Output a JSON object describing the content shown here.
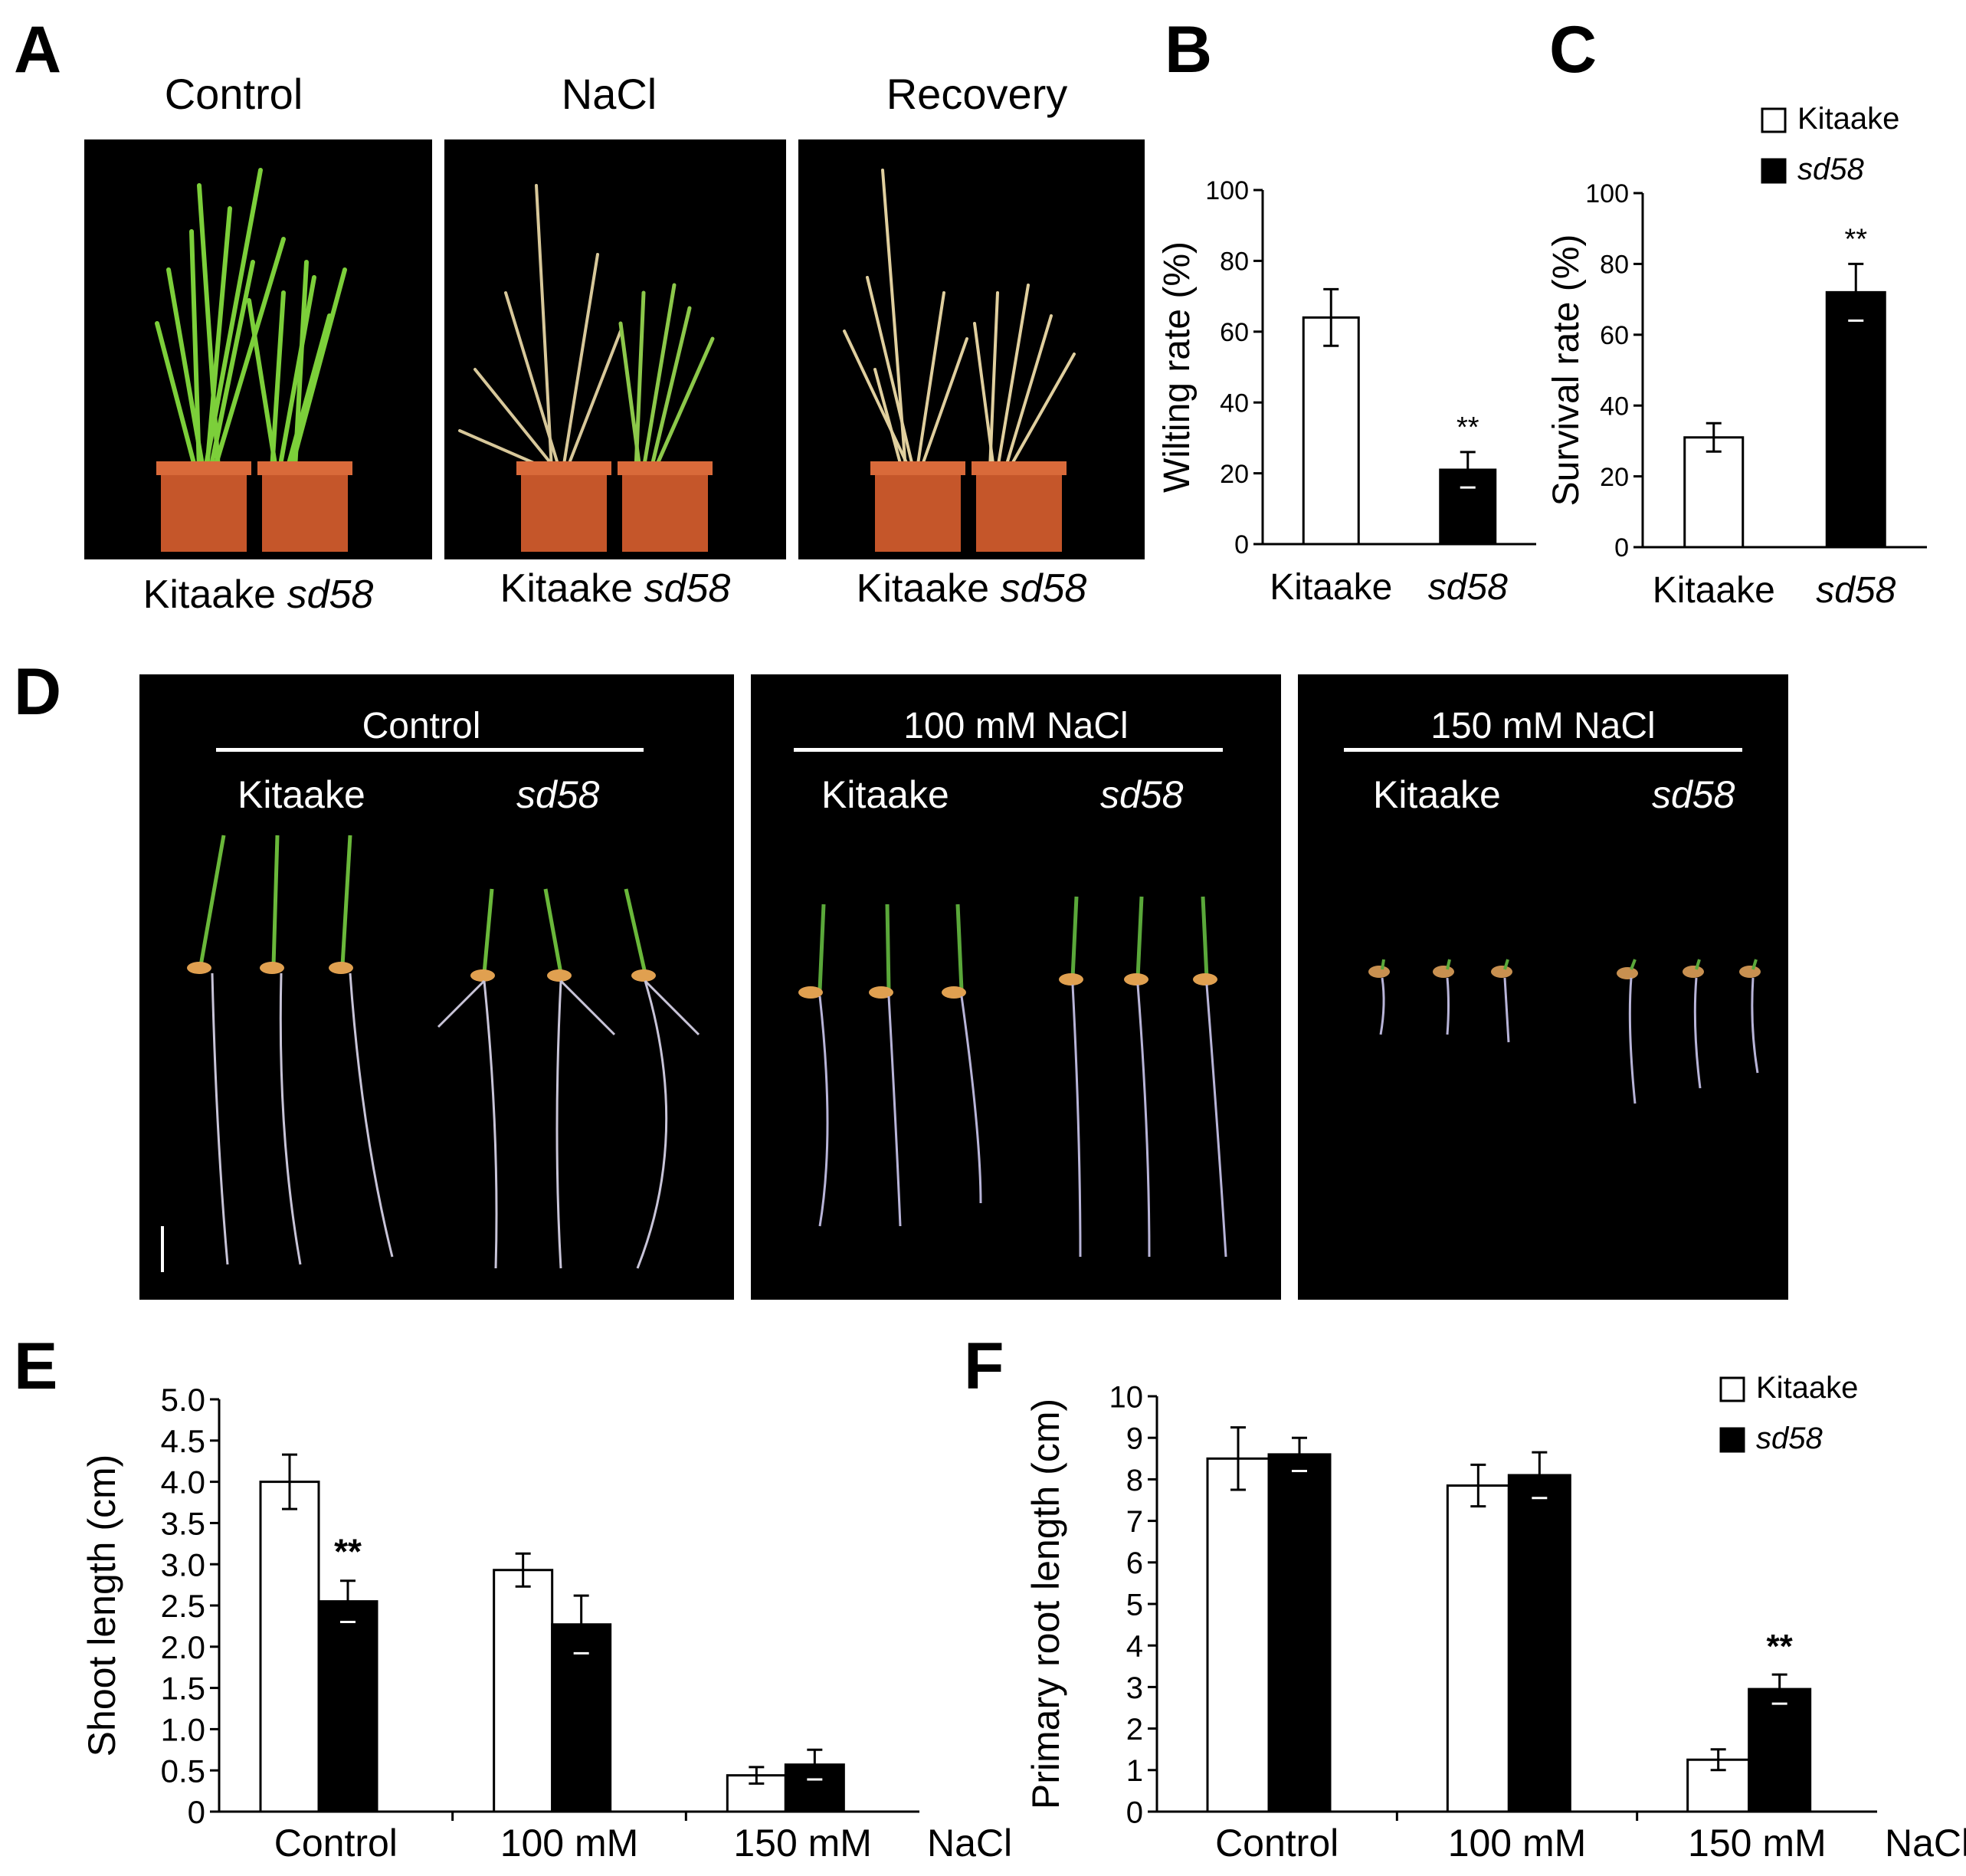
{
  "panels": {
    "A": {
      "letter": "A",
      "conditions": [
        {
          "title": "Control",
          "caption_wt": "Kitaake",
          "caption_mut": "sd58"
        },
        {
          "title": "NaCl",
          "caption_wt": "Kitaake",
          "caption_mut": "sd58"
        },
        {
          "title": "Recovery",
          "caption_wt": "Kitaake",
          "caption_mut": "sd58"
        }
      ]
    },
    "B": {
      "letter": "B"
    },
    "C": {
      "letter": "C"
    },
    "D": {
      "letter": "D",
      "conditions": [
        {
          "title": "Control",
          "wt": "Kitaake",
          "mut": "sd58"
        },
        {
          "title": "100 mM NaCl",
          "wt": "Kitaake",
          "mut": "sd58"
        },
        {
          "title": "150 mM NaCl",
          "wt": "Kitaake",
          "mut": "sd58"
        }
      ]
    },
    "E": {
      "letter": "E"
    },
    "F": {
      "letter": "F"
    }
  },
  "colors": {
    "wt_bar": "#ffffff",
    "mut_bar": "#000000",
    "background": "#000000",
    "pot": "#c5562a",
    "leaf_green": "#7ccf3a",
    "leaf_dry": "#d8c89a",
    "root": "#c8c4d8"
  },
  "chart_data": [
    {
      "id": "B",
      "type": "bar",
      "ylabel": "Wilting rate (%)",
      "categories": [
        "Kitaake",
        "sd58"
      ],
      "values": [
        64,
        21
      ],
      "errors": [
        8,
        5
      ],
      "bar_colors": [
        "#ffffff",
        "#000000"
      ],
      "ylim": [
        0,
        100
      ],
      "yticks": [
        0,
        20,
        40,
        60,
        80,
        100
      ],
      "significance": [
        "",
        "**"
      ]
    },
    {
      "id": "C",
      "type": "bar",
      "ylabel": "Survival rate (%)",
      "categories": [
        "Kitaake",
        "sd58"
      ],
      "values": [
        31,
        72
      ],
      "errors": [
        4,
        8
      ],
      "bar_colors": [
        "#ffffff",
        "#000000"
      ],
      "ylim": [
        0,
        100
      ],
      "yticks": [
        0,
        20,
        40,
        60,
        80,
        100
      ],
      "legend": [
        "Kitaake",
        "sd58"
      ],
      "significance": [
        "",
        "**"
      ]
    },
    {
      "id": "E",
      "type": "bar",
      "ylabel": "Shoot length (cm)",
      "xlabel": "NaCl",
      "categories": [
        "Control",
        "100 mM",
        "150 mM"
      ],
      "series": [
        {
          "name": "Kitaake",
          "values": [
            4.0,
            2.93,
            0.44
          ],
          "errors": [
            0.33,
            0.2,
            0.1
          ]
        },
        {
          "name": "sd58",
          "values": [
            2.55,
            2.27,
            0.57
          ],
          "errors": [
            0.25,
            0.35,
            0.18
          ]
        }
      ],
      "ylim": [
        0,
        5
      ],
      "yticks": [
        "0",
        "0.5",
        "1.0",
        "1.5",
        "2.0",
        "2.5",
        "3.0",
        "3.5",
        "4.0",
        "4.5",
        "5.0"
      ],
      "significance": [
        {
          "category": 0,
          "series": 1,
          "label": "**"
        }
      ]
    },
    {
      "id": "F",
      "type": "bar",
      "ylabel": "Primary root length (cm)",
      "xlabel": "NaCl",
      "categories": [
        "Control",
        "100 mM",
        "150 mM"
      ],
      "series": [
        {
          "name": "Kitaake",
          "values": [
            8.5,
            7.85,
            1.25
          ],
          "errors": [
            0.75,
            0.5,
            0.25
          ]
        },
        {
          "name": "sd58",
          "values": [
            8.6,
            8.1,
            2.95
          ],
          "errors": [
            0.4,
            0.55,
            0.35
          ]
        }
      ],
      "ylim": [
        0,
        10
      ],
      "yticks": [
        "0",
        "1",
        "2",
        "3",
        "4",
        "5",
        "6",
        "7",
        "8",
        "9",
        "10"
      ],
      "legend": [
        "Kitaake",
        "sd58"
      ],
      "significance": [
        {
          "category": 2,
          "series": 1,
          "label": "**"
        }
      ]
    }
  ]
}
